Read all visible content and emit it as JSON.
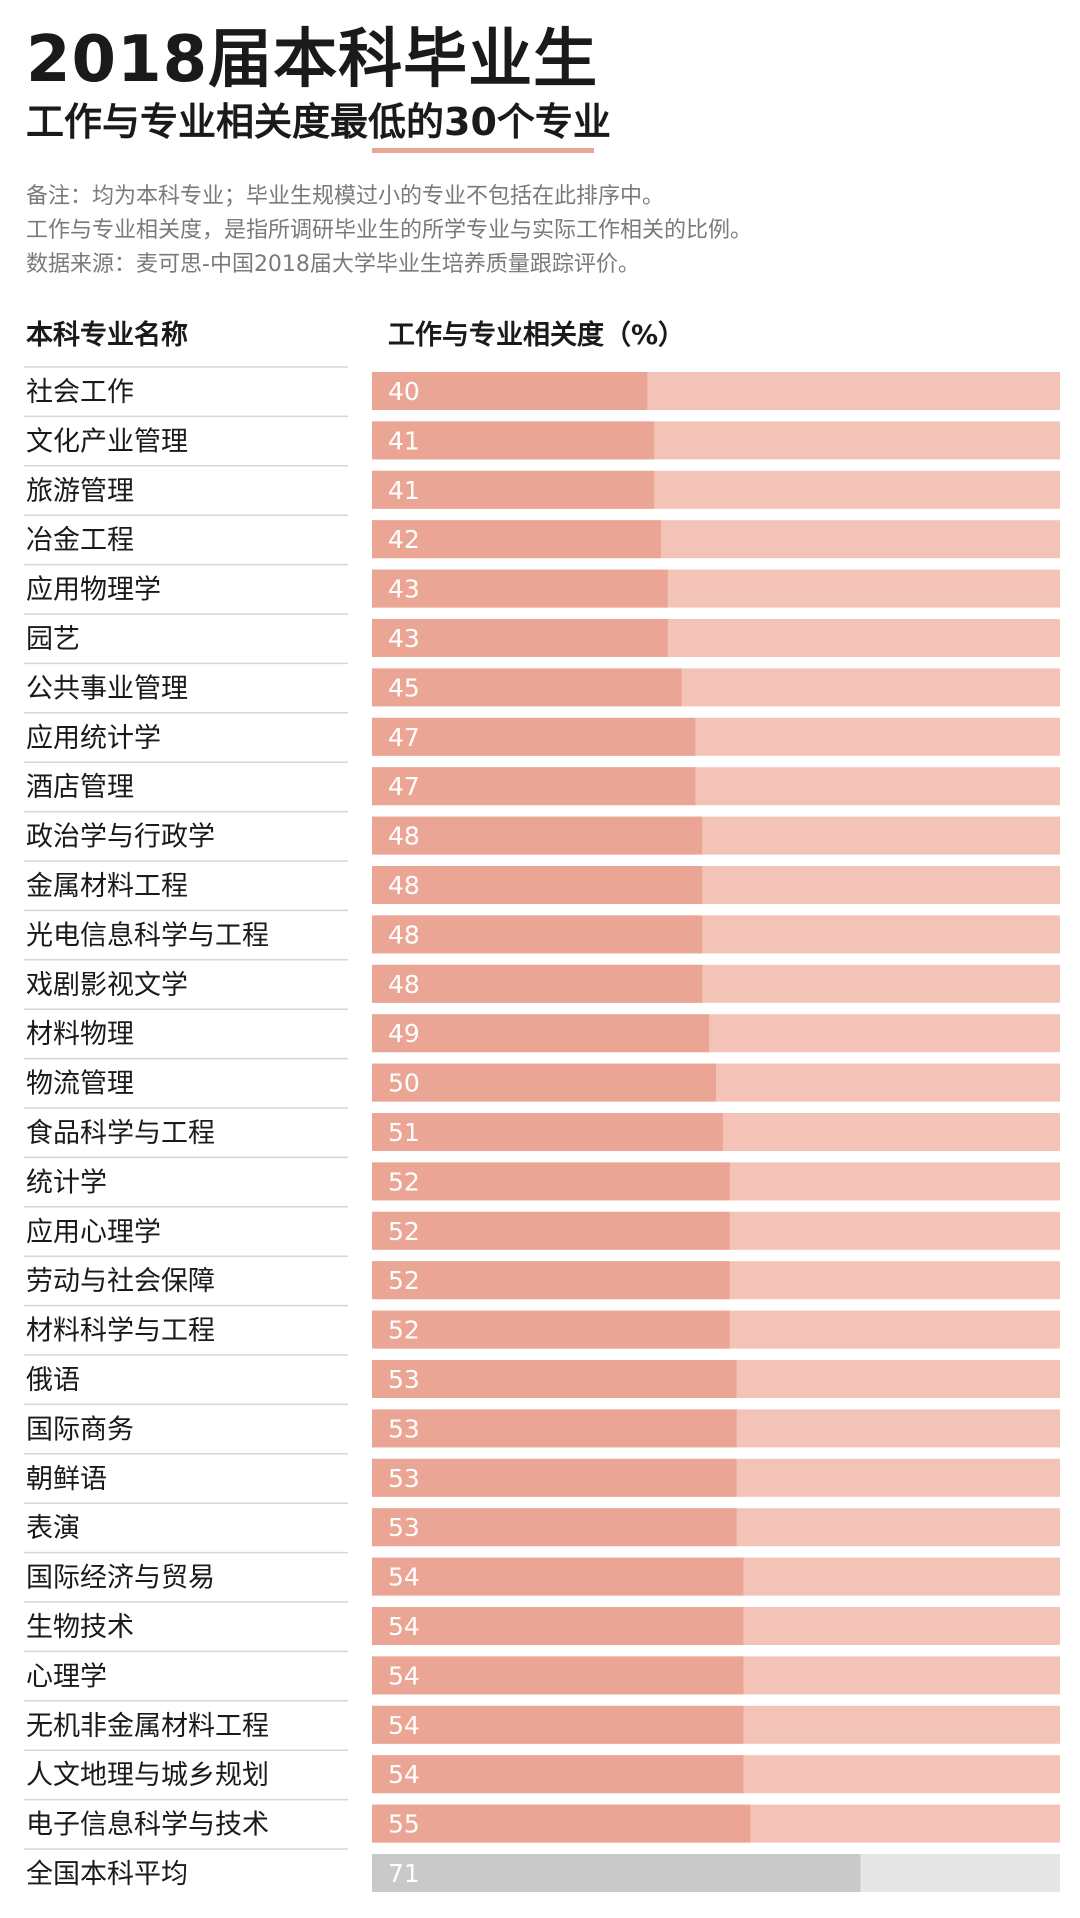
{
  "title": "2018届本科毕业生",
  "subtitle": "工作与专业相关度最低的30个专业",
  "notes": [
    "备注：均为本科专业；毕业生规模过小的专业不包括在此排序中。",
    "工作与专业相关度，是指所调研毕业生的所学专业与实际工作相关的比例。",
    "数据来源：麦可思-中国2018届大学毕业生培养质量跟踪评价。"
  ],
  "colors": {
    "bar_fill": "#eba595",
    "bar_track": "#f4c3b8",
    "avg_fill": "#c9c9c9",
    "avg_track": "#e6e6e6",
    "accent_underline": "#e9a797",
    "row_divider": "#d5d5d5"
  },
  "chart_data": {
    "type": "bar",
    "orientation": "horizontal",
    "xlim": [
      0,
      100
    ],
    "column_headers": {
      "category": "本科专业名称",
      "value": "工作与专业相关度（%）"
    },
    "categories": [
      "社会工作",
      "文化产业管理",
      "旅游管理",
      "冶金工程",
      "应用物理学",
      "园艺",
      "公共事业管理",
      "应用统计学",
      "酒店管理",
      "政治学与行政学",
      "金属材料工程",
      "光电信息科学与工程",
      "戏剧影视文学",
      "材料物理",
      "物流管理",
      "食品科学与工程",
      "统计学",
      "应用心理学",
      "劳动与社会保障",
      "材料科学与工程",
      "俄语",
      "国际商务",
      "朝鲜语",
      "表演",
      "国际经济与贸易",
      "生物技术",
      "心理学",
      "无机非金属材料工程",
      "人文地理与城乡规划",
      "电子信息科学与技术"
    ],
    "values": [
      40,
      41,
      41,
      42,
      43,
      43,
      45,
      47,
      47,
      48,
      48,
      48,
      48,
      49,
      50,
      51,
      52,
      52,
      52,
      52,
      53,
      53,
      53,
      53,
      54,
      54,
      54,
      54,
      54,
      55
    ],
    "reference": {
      "label": "全国本科平均",
      "value": 71
    }
  }
}
